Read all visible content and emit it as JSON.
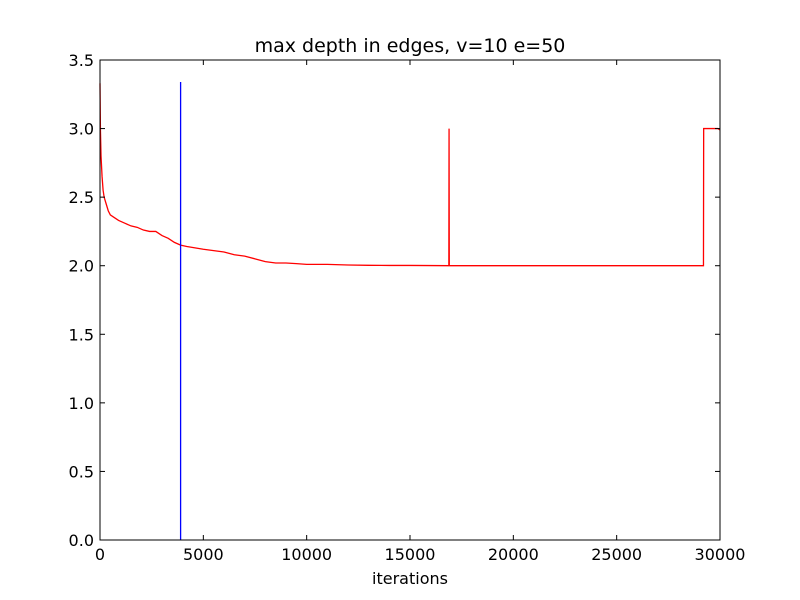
{
  "chart_data": {
    "type": "line",
    "title": "max depth in edges, v=10 e=50",
    "xlabel": "iterations",
    "ylabel": "",
    "xlim": [
      0,
      30000
    ],
    "ylim": [
      0,
      3.5
    ],
    "x_ticks": [
      0,
      5000,
      10000,
      15000,
      20000,
      25000,
      30000
    ],
    "x_tick_labels": [
      "0",
      "5000",
      "10000",
      "15000",
      "20000",
      "25000",
      "30000"
    ],
    "y_ticks": [
      0.0,
      0.5,
      1.0,
      1.5,
      2.0,
      2.5,
      3.0,
      3.5
    ],
    "y_tick_labels": [
      "0.0",
      "0.5",
      "1.0",
      "1.5",
      "2.0",
      "2.5",
      "3.0",
      "3.5"
    ],
    "grid": false,
    "legend": "none",
    "series": [
      {
        "color": "#ff0000",
        "x": [
          0,
          20,
          50,
          100,
          150,
          200,
          300,
          400,
          500,
          700,
          900,
          1200,
          1500,
          1800,
          2100,
          2400,
          2700,
          3000,
          3300,
          3600,
          3900,
          4200,
          4600,
          5000,
          5500,
          6000,
          6500,
          7000,
          7500,
          8000,
          8500,
          9000,
          9500,
          10000,
          11000,
          12000,
          13000,
          14000,
          15000,
          16000,
          16880,
          16890,
          16900,
          16910,
          17500,
          18500,
          19500,
          20500,
          22000,
          24000,
          26000,
          28000,
          29200,
          29210,
          29900,
          30000
        ],
        "y": [
          3.33,
          3.0,
          2.8,
          2.65,
          2.55,
          2.5,
          2.45,
          2.4,
          2.37,
          2.35,
          2.33,
          2.31,
          2.29,
          2.28,
          2.26,
          2.25,
          2.25,
          2.22,
          2.2,
          2.17,
          2.15,
          2.14,
          2.13,
          2.12,
          2.11,
          2.1,
          2.08,
          2.07,
          2.05,
          2.03,
          2.02,
          2.02,
          2.015,
          2.01,
          2.01,
          2.005,
          2.003,
          2.002,
          2.002,
          2.001,
          2.0,
          3.0,
          2.0,
          2.0,
          2.0,
          2.0,
          2.0,
          2.0,
          2.0,
          2.0,
          2.0,
          2.0,
          2.0,
          3.0,
          3.0,
          2.99
        ]
      },
      {
        "color": "#0000ff",
        "x": [
          3900,
          3900
        ],
        "y": [
          0,
          3.34
        ]
      }
    ]
  }
}
